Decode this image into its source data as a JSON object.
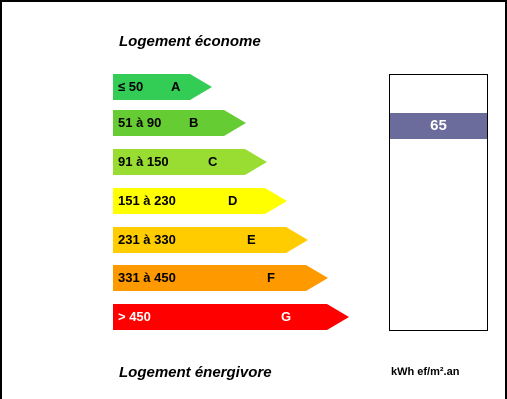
{
  "captions": {
    "top": "Logement économe",
    "bottom": "Logement énergivore"
  },
  "ratings": [
    {
      "range": "≤ 50",
      "letter": "A",
      "color": "#33cc55",
      "text_color": "#000000"
    },
    {
      "range": "51 à 90",
      "letter": "B",
      "color": "#66cc33",
      "text_color": "#000000"
    },
    {
      "range": "91 à 150",
      "letter": "C",
      "color": "#99dd33",
      "text_color": "#000000"
    },
    {
      "range": "151 à 230",
      "letter": "D",
      "color": "#ffff00",
      "text_color": "#000000"
    },
    {
      "range": "231 à 330",
      "letter": "E",
      "color": "#ffcc00",
      "text_color": "#000000"
    },
    {
      "range": "331 à 450",
      "letter": "F",
      "color": "#ff9900",
      "text_color": "#000000"
    },
    {
      "range": "> 450",
      "letter": "G",
      "color": "#ff0000",
      "text_color": "#ffffff"
    }
  ],
  "consumption": {
    "value": "65",
    "unit": "kWh ef/m².an",
    "marker_color": "#6b6b9c"
  }
}
